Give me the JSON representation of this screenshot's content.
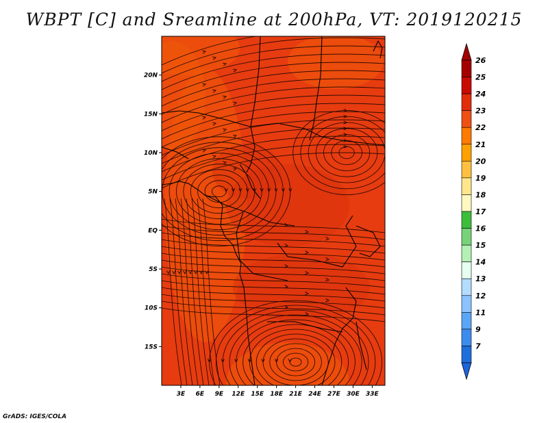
{
  "title": "WBPT [C] and Sreamline at 200hPa, VT: 2019120215",
  "credit": "GrADS: IGES/COLA",
  "map": {
    "lon_range": [
      0,
      35
    ],
    "lat_range": [
      -20,
      25
    ],
    "lat_ticks": [
      {
        "value": 20,
        "label": "20N"
      },
      {
        "value": 15,
        "label": "15N"
      },
      {
        "value": 10,
        "label": "10N"
      },
      {
        "value": 5,
        "label": "5N"
      },
      {
        "value": 0,
        "label": "EQ"
      },
      {
        "value": -5,
        "label": "5S"
      },
      {
        "value": -10,
        "label": "10S"
      },
      {
        "value": -15,
        "label": "15S"
      }
    ],
    "lon_ticks": [
      {
        "value": 3,
        "label": "3E"
      },
      {
        "value": 6,
        "label": "6E"
      },
      {
        "value": 9,
        "label": "9E"
      },
      {
        "value": 12,
        "label": "12E"
      },
      {
        "value": 15,
        "label": "15E"
      },
      {
        "value": 18,
        "label": "18E"
      },
      {
        "value": 21,
        "label": "21E"
      },
      {
        "value": 24,
        "label": "24E"
      },
      {
        "value": 27,
        "label": "27E"
      },
      {
        "value": 30,
        "label": "30E"
      },
      {
        "value": 33,
        "label": "33E"
      }
    ],
    "field_colors": {
      "background": "#e63c10",
      "warm_patch": "#f05a0a",
      "cool_patch": "#d8300c"
    }
  },
  "colorbar": {
    "levels": [
      {
        "label": "26",
        "color": "#a50000"
      },
      {
        "label": "25",
        "color": "#c80a00"
      },
      {
        "label": "24",
        "color": "#e12d0a"
      },
      {
        "label": "23",
        "color": "#f05014"
      },
      {
        "label": "22",
        "color": "#ff7a00"
      },
      {
        "label": "21",
        "color": "#ffa000"
      },
      {
        "label": "20",
        "color": "#ffc040"
      },
      {
        "label": "19",
        "color": "#ffe68c"
      },
      {
        "label": "18",
        "color": "#fff8c0"
      },
      {
        "label": "17",
        "color": "#3cbe3c"
      },
      {
        "label": "16",
        "color": "#78d278"
      },
      {
        "label": "15",
        "color": "#b4f0b4"
      },
      {
        "label": "14",
        "color": "#e6fff0"
      },
      {
        "label": "13",
        "color": "#b4dcff"
      },
      {
        "label": "12",
        "color": "#8cc3ff"
      },
      {
        "label": "11",
        "color": "#5aa5f5"
      },
      {
        "label": "9",
        "color": "#3c8ced"
      },
      {
        "label": "7",
        "color": "#1e6edc"
      }
    ],
    "bottom_color": "#1e64dc"
  }
}
